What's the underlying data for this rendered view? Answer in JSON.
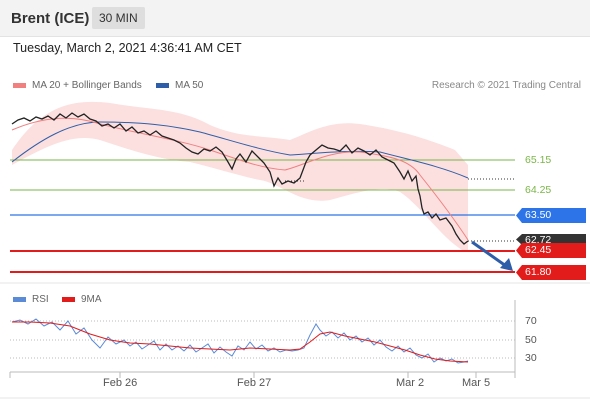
{
  "header": {
    "instrument": "Brent (ICE)",
    "interval": "30 MIN"
  },
  "timestamp": "Tuesday, March 2, 2021 4:36:41 AM CET",
  "legend": {
    "ma20": {
      "label": "MA 20 + Bollinger Bands",
      "color": "#f08080"
    },
    "ma50": {
      "label": "MA 50",
      "color": "#2f5ea8"
    }
  },
  "copyright": "Research © 2021 Trading Central",
  "levels": {
    "r2": {
      "value": "65.15",
      "color": "#7ab648"
    },
    "r1": {
      "value": "64.25",
      "color": "#7ab648"
    },
    "pivot": {
      "value": "63.50",
      "color": "#2d74e8"
    },
    "last": {
      "value": "62.72",
      "color": "#333333"
    },
    "s1": {
      "value": "62.45",
      "color": "#e21b1b"
    },
    "s2": {
      "value": "61.80",
      "color": "#e21b1b"
    }
  },
  "xaxis": {
    "labels": [
      "Feb 26",
      "Feb 27",
      "Mar 2",
      "Mar 5"
    ]
  },
  "rsi": {
    "legend": {
      "rsi": "RSI",
      "ma": "9MA"
    },
    "levels": [
      "70",
      "50",
      "30"
    ],
    "colors": {
      "rsi": "#5b8ad6",
      "ma": "#e21b1b"
    }
  },
  "icons": {
    "forecast": "arrow-down-right-icon"
  }
}
